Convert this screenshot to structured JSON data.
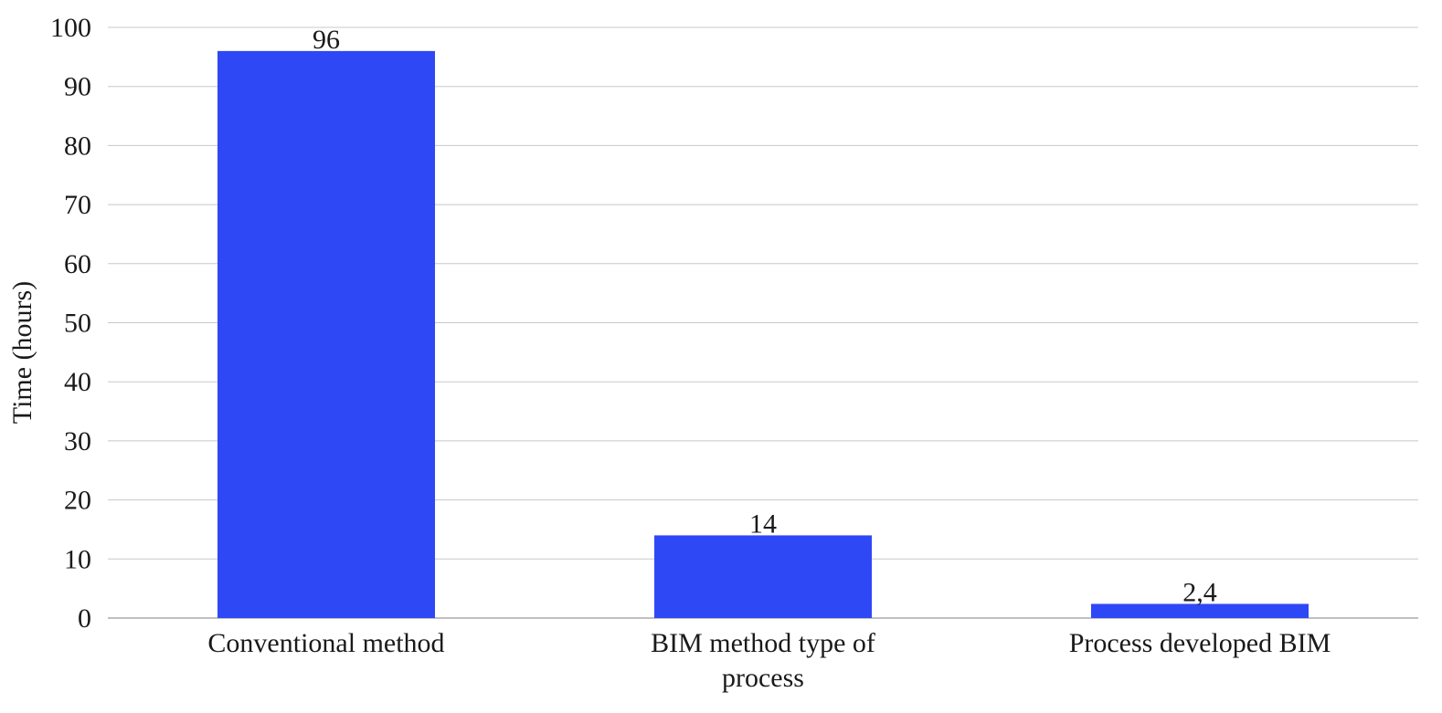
{
  "chart_data": {
    "type": "bar",
    "title": "",
    "xlabel": "",
    "ylabel": "Time (hours)",
    "ylim": [
      0,
      100
    ],
    "yticks": [
      0,
      10,
      20,
      30,
      40,
      50,
      60,
      70,
      80,
      90,
      100
    ],
    "grid": true,
    "legend": "none",
    "categories": [
      [
        "Conventional method"
      ],
      [
        "BIM method type of",
        "process"
      ],
      [
        "Process developed BIM"
      ]
    ],
    "values": [
      96,
      14,
      2.4
    ],
    "data_labels": [
      "96",
      "14",
      "2,4"
    ],
    "bar_color": "#2f48f5"
  }
}
